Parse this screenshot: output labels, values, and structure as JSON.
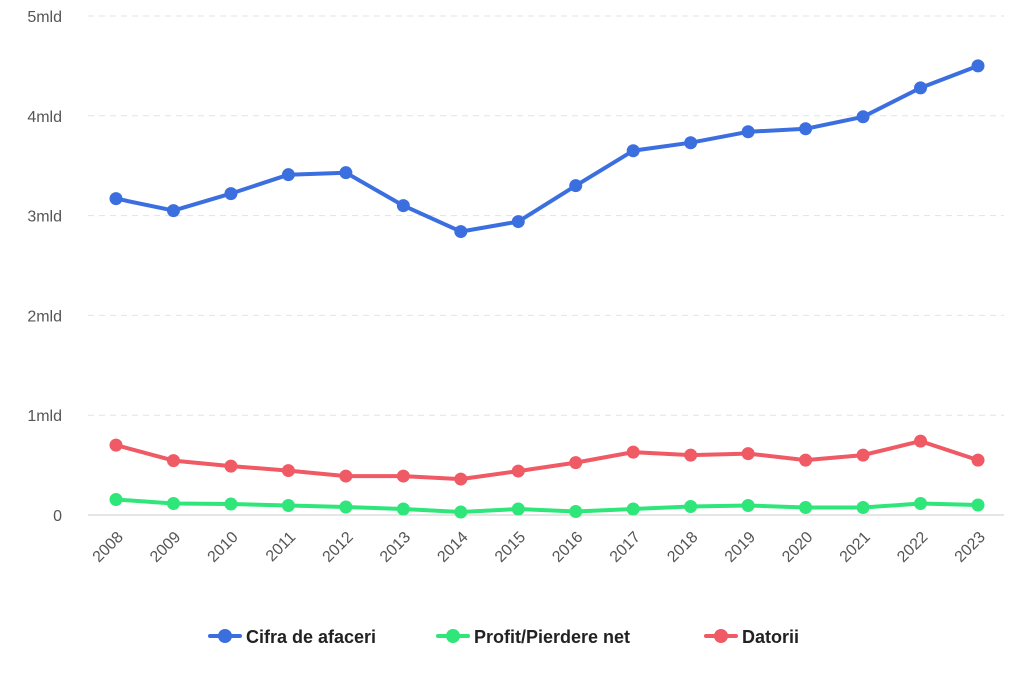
{
  "chart_data": {
    "type": "line",
    "title": "",
    "xlabel": "",
    "ylabel": "",
    "categories": [
      "2008",
      "2009",
      "2010",
      "2011",
      "2012",
      "2013",
      "2014",
      "2015",
      "2016",
      "2017",
      "2018",
      "2019",
      "2020",
      "2021",
      "2022",
      "2023"
    ],
    "y_ticks": [
      {
        "value": 0,
        "label": "0"
      },
      {
        "value": 1000000000,
        "label": "1mld"
      },
      {
        "value": 2000000000,
        "label": "2mld"
      },
      {
        "value": 3000000000,
        "label": "3mld"
      },
      {
        "value": 4000000000,
        "label": "4mld"
      },
      {
        "value": 5000000000,
        "label": "5mld"
      }
    ],
    "ylim": [
      0,
      5000000000
    ],
    "grid": true,
    "legend_position": "bottom",
    "series": [
      {
        "name": "Cifra de afaceri",
        "color": "#3b6fe0",
        "values": [
          3170000000,
          3050000000,
          3220000000,
          3410000000,
          3430000000,
          3100000000,
          2840000000,
          2940000000,
          3300000000,
          3650000000,
          3730000000,
          3840000000,
          3870000000,
          3990000000,
          4280000000,
          4500000000
        ]
      },
      {
        "name": "Profit/Pierdere net",
        "color": "#2ee67a",
        "values": [
          155000000,
          115000000,
          110000000,
          95000000,
          80000000,
          60000000,
          30000000,
          60000000,
          35000000,
          60000000,
          85000000,
          95000000,
          75000000,
          75000000,
          115000000,
          100000000
        ]
      },
      {
        "name": "Datorii",
        "color": "#ef5a64",
        "values": [
          700000000,
          545000000,
          490000000,
          445000000,
          390000000,
          390000000,
          360000000,
          440000000,
          525000000,
          630000000,
          600000000,
          615000000,
          550000000,
          600000000,
          740000000,
          550000000
        ]
      }
    ]
  }
}
